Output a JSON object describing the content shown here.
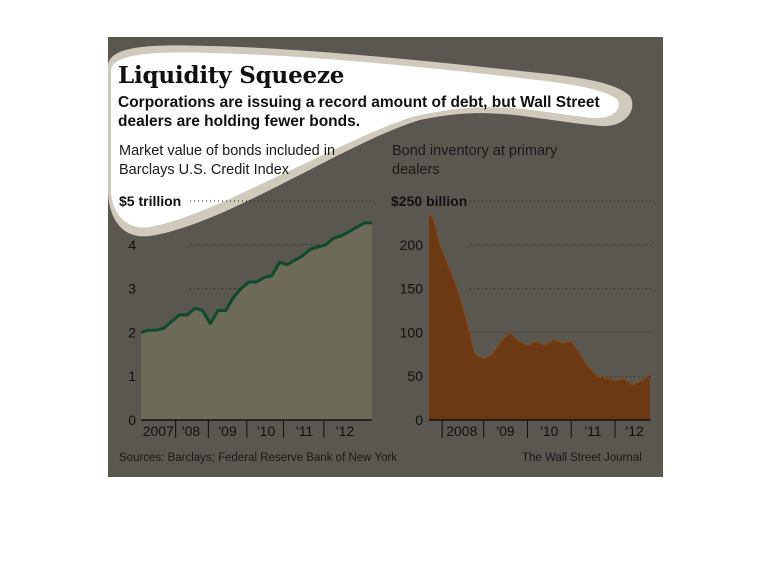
{
  "headline": {
    "title": "Liquidity Squeeze",
    "subtitle": "Corporations are issuing a record amount of debt, but Wall Street dealers are holding fewer bonds."
  },
  "footer": {
    "sources": "Sources: Barclays; Federal Reserve Bank of New York",
    "credit": "The Wall Street Journal"
  },
  "colors": {
    "background": "#5a5650",
    "left_fill": "#6e6a5a",
    "left_line": "#0f4a2c",
    "right_fill": "#6b3a14",
    "right_line": "#874a1c",
    "highlight": "#ffffff",
    "highlight_rim": "#cfcabc"
  },
  "chart_data": [
    {
      "type": "area",
      "title": "Market value of bonds included in Barclays U.S. Credit Index",
      "unit_label": "$5 trillion",
      "y_ticks": [
        "4",
        "3",
        "2",
        "1",
        "0"
      ],
      "ylim": [
        0,
        5
      ],
      "x_ticks": [
        "2007",
        "'08",
        "'09",
        "'10",
        "'11",
        "'12"
      ],
      "grid": true,
      "x": [
        2006.8,
        2007.0,
        2007.2,
        2007.4,
        2007.6,
        2007.8,
        2008.0,
        2008.2,
        2008.4,
        2008.6,
        2008.7,
        2008.8,
        2009.0,
        2009.2,
        2009.4,
        2009.6,
        2009.8,
        2010.0,
        2010.2,
        2010.4,
        2010.6,
        2010.8,
        2011.0,
        2011.2,
        2011.4,
        2011.6,
        2011.8,
        2012.0,
        2012.2,
        2012.4,
        2012.6,
        2012.8
      ],
      "values": [
        2.0,
        2.05,
        2.05,
        2.1,
        2.25,
        2.4,
        2.4,
        2.55,
        2.5,
        2.2,
        2.35,
        2.5,
        2.5,
        2.8,
        3.0,
        3.15,
        3.15,
        3.25,
        3.3,
        3.6,
        3.55,
        3.65,
        3.75,
        3.9,
        3.95,
        4.0,
        4.15,
        4.2,
        4.3,
        4.4,
        4.5,
        4.5
      ]
    },
    {
      "type": "area",
      "title": "Bond inventory at primary dealers",
      "unit_label": "$250 billion",
      "y_ticks": [
        "200",
        "150",
        "100",
        "50",
        "0"
      ],
      "ylim": [
        0,
        250
      ],
      "x_ticks": [
        "2008",
        "'09",
        "'10",
        "'11",
        "'12"
      ],
      "grid": true,
      "x": [
        2007.75,
        2007.85,
        2008.0,
        2008.2,
        2008.4,
        2008.6,
        2008.8,
        2009.0,
        2009.2,
        2009.4,
        2009.6,
        2009.8,
        2010.0,
        2010.2,
        2010.4,
        2010.6,
        2010.8,
        2011.0,
        2011.2,
        2011.4,
        2011.6,
        2011.8,
        2012.0,
        2012.2,
        2012.4,
        2012.6,
        2012.8
      ],
      "values": [
        235,
        230,
        200,
        175,
        150,
        115,
        75,
        70,
        75,
        90,
        100,
        90,
        85,
        90,
        85,
        92,
        88,
        90,
        75,
        60,
        50,
        48,
        45,
        47,
        40,
        45,
        52
      ]
    }
  ]
}
